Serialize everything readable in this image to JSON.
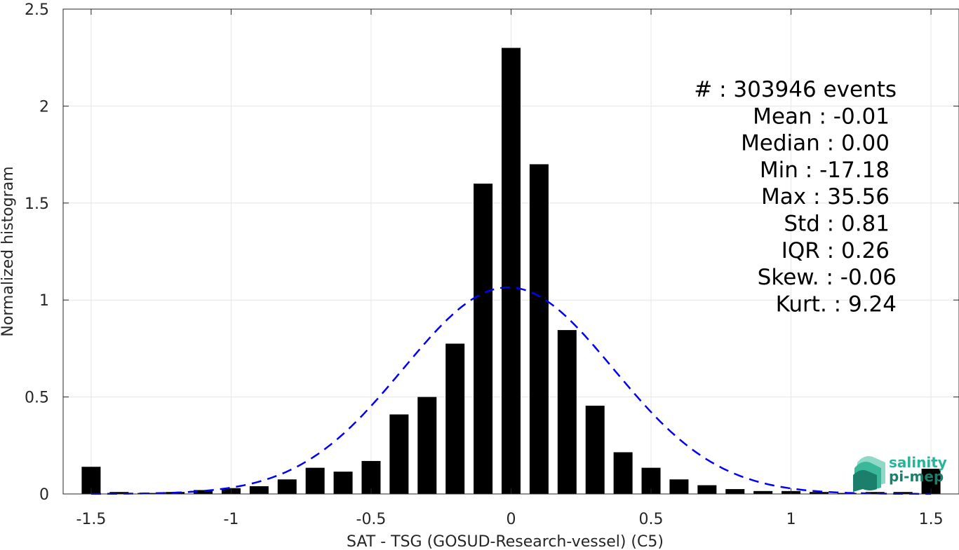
{
  "chart_data": {
    "type": "bar",
    "xlabel": "SAT - TSG (GOSUD-Research-vessel) (C5)",
    "ylabel": "Normalized histogram",
    "xlim": [
      -1.6,
      1.6
    ],
    "ylim": [
      0,
      2.5
    ],
    "xticks": [
      -1.5,
      -1,
      -0.5,
      0,
      0.5,
      1,
      1.5
    ],
    "xtick_labels": [
      "-1.5",
      "-1",
      "-0.5",
      "0",
      "0.5",
      "1",
      "1.5"
    ],
    "yticks": [
      0,
      0.5,
      1,
      1.5,
      2,
      2.5
    ],
    "ytick_labels": [
      "0",
      "0.5",
      "1",
      "1.5",
      "2",
      "2.5"
    ],
    "grid": true,
    "bar_color": "#000000",
    "x": [
      -1.5,
      -1.4,
      -1.3,
      -1.2,
      -1.1,
      -1.0,
      -0.9,
      -0.8,
      -0.7,
      -0.6,
      -0.5,
      -0.4,
      -0.3,
      -0.2,
      -0.1,
      0.0,
      0.1,
      0.2,
      0.3,
      0.4,
      0.5,
      0.6,
      0.7,
      0.8,
      0.9,
      1.0,
      1.1,
      1.2,
      1.3,
      1.4,
      1.5
    ],
    "values": [
      0.14,
      0.01,
      0.005,
      0.01,
      0.02,
      0.03,
      0.04,
      0.075,
      0.135,
      0.115,
      0.17,
      0.41,
      0.5,
      0.775,
      1.6,
      2.3,
      1.7,
      0.845,
      0.455,
      0.215,
      0.135,
      0.075,
      0.045,
      0.025,
      0.015,
      0.015,
      0.01,
      0.005,
      0.01,
      0.01,
      0.13
    ],
    "fit_curve": {
      "style": "dashed",
      "color": "#0000ff",
      "mean": -0.01,
      "std": 0.375,
      "peak": 1.065
    },
    "stats_lines": [
      "#  : 303946 events",
      "Mean : -0.01",
      "Median : 0.00",
      "Min : -17.18",
      "Max : 35.56",
      "Std : 0.81",
      "IQR : 0.26",
      "Skew. : -0.06",
      "Kurt. : 9.24"
    ]
  },
  "logo": {
    "line1": "salinity",
    "line2": "pi-mep"
  }
}
